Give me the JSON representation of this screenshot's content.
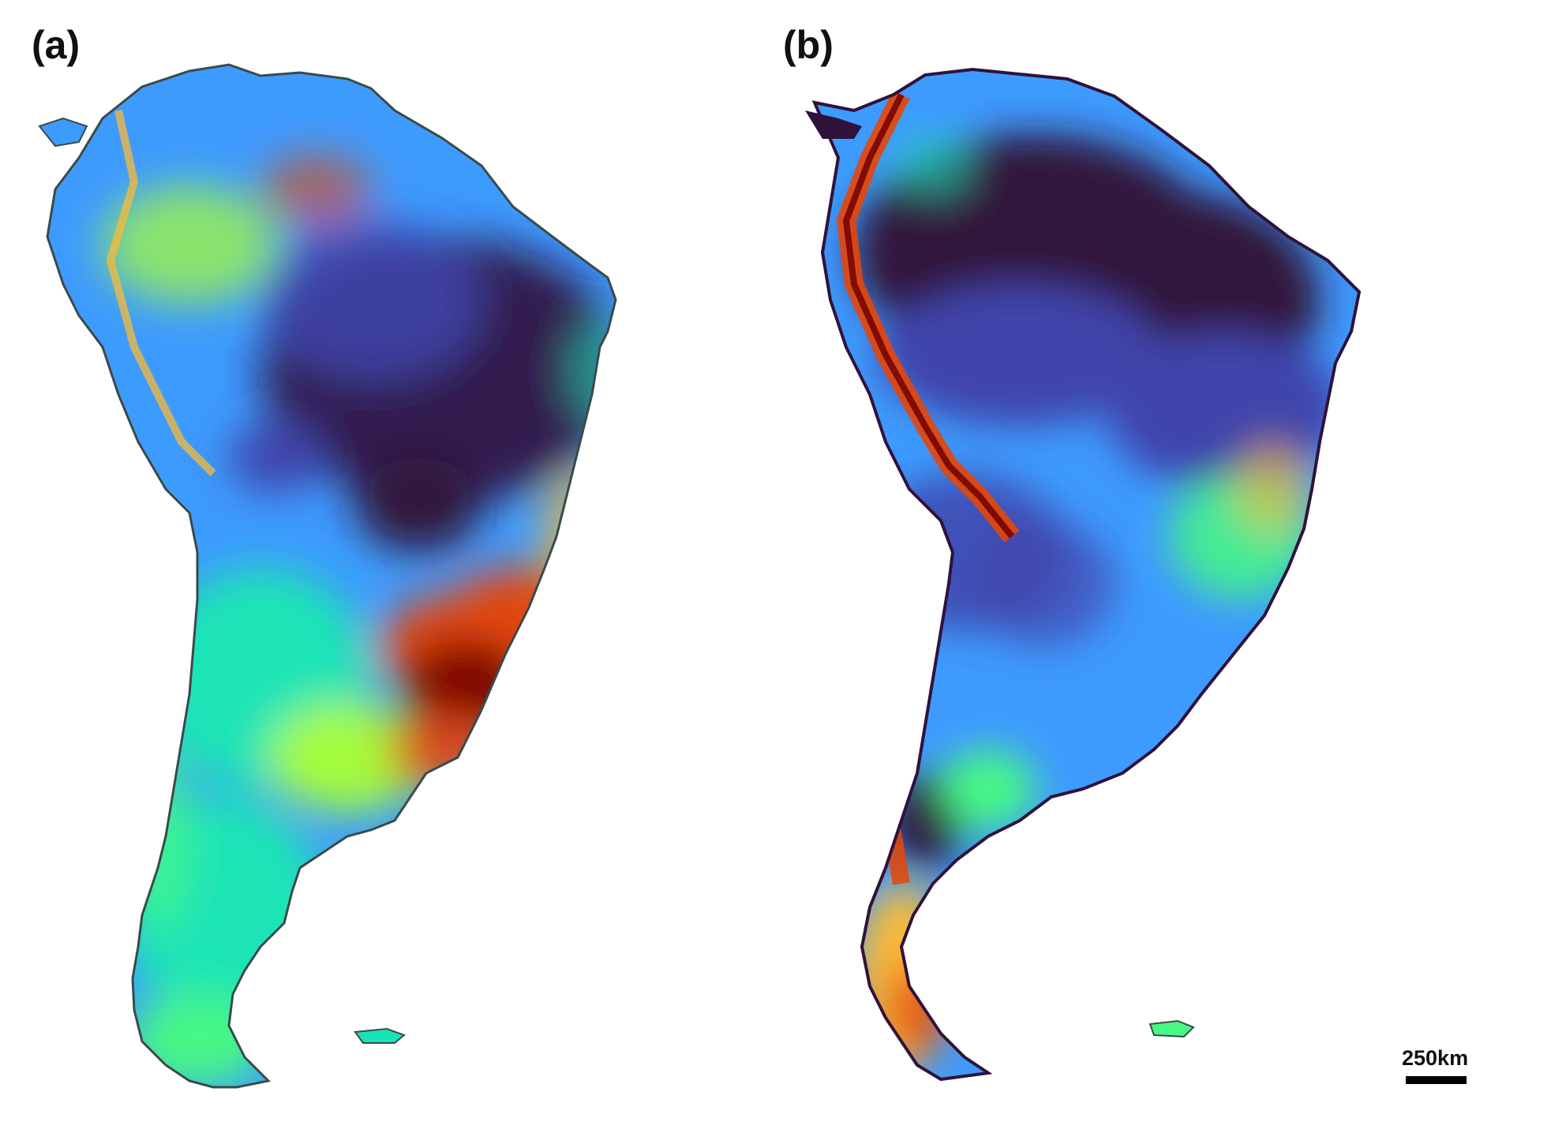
{
  "panels": [
    {
      "label": "(a)"
    },
    {
      "label": "(b)"
    }
  ],
  "scale_bar": {
    "label": "250km"
  },
  "colormap": {
    "low": "#30123b",
    "mid_low": "#3e9bfe",
    "mid": "#1ae4b6",
    "mid_high": "#faba39",
    "high": "#7a0403"
  }
}
